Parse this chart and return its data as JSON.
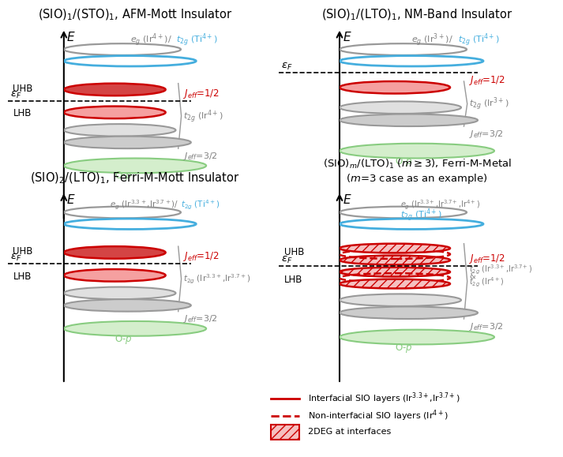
{
  "panel_titles": [
    "(SIO)$_1$/(STO)$_1$, AFM-Mott Insulator",
    "(SIO)$_1$/(LTO)$_1$, NM-Band Insulator",
    "(SIO)$_2$/(LTO)$_1$, Ferri-M-Mott Insulator",
    "(SIO)$_m$/(LTO)$_1$ ($m$$\\geq$3), Ferri-M-Metal\n($m$=3 case as an example)"
  ],
  "colors": {
    "red_dark": "#cc0000",
    "red_uhb": "#d44444",
    "red_lhb_fill": "#f5a0a0",
    "red_metal_fill": "#f5c0c0",
    "blue": "#45AEDE",
    "gray_edge": "#999999",
    "gray_fill1": "#e0e0e0",
    "gray_fill2": "#cccccc",
    "green_fill": "#d4eecc",
    "green_edge": "#88cc80",
    "black": "#000000"
  },
  "legend": {
    "solid_label": "Interfacial SIO layers (Ir$^{3.3+}$,Ir$^{3.7+}$)",
    "dashed_label": "Non-interfacial SIO layers (Ir$^{4+}$)",
    "hatch_label": "2DEG at interfaces"
  }
}
